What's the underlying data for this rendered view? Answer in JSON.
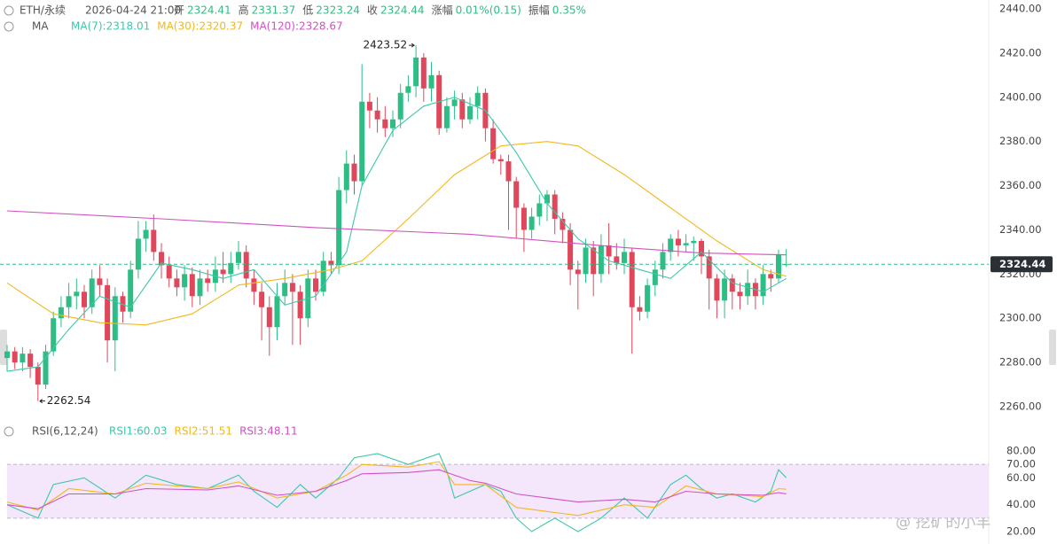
{
  "chart_data": {
    "type": "candlestick",
    "symbol": "ETH/永续",
    "time": "2026-04-24 21:00",
    "stats": [
      {
        "label": "开",
        "value": 2324.41
      },
      {
        "label": "高",
        "value": 2331.37
      },
      {
        "label": "低",
        "value": 2323.24
      },
      {
        "label": "收",
        "value": 2324.44
      },
      {
        "label": "涨幅",
        "value": "0.01%(0.15)"
      },
      {
        "label": "振幅",
        "value": "0.35%"
      }
    ],
    "up_color": "#2ebd85",
    "down_color": "#e0475a",
    "ylim": [
      2260,
      2440
    ],
    "yticks": [
      {
        "value": 2260,
        "label": "2260.00"
      },
      {
        "value": 2280,
        "label": "2280.00"
      },
      {
        "value": 2300,
        "label": "2300.00"
      },
      {
        "value": 2320,
        "label": "2320.00"
      },
      {
        "value": 2340,
        "label": "2340.00"
      },
      {
        "value": 2360,
        "label": "2360.00"
      },
      {
        "value": 2380,
        "label": "2380.00"
      },
      {
        "value": 2400,
        "label": "2400.00"
      },
      {
        "value": 2420,
        "label": "2420.00"
      },
      {
        "value": 2440,
        "label": "2440.00"
      }
    ],
    "candles": [
      [
        2282,
        2288,
        2276,
        2285
      ],
      [
        2285,
        2287,
        2277,
        2280
      ],
      [
        2280,
        2287,
        2276,
        2284
      ],
      [
        2284,
        2286,
        2273,
        2278
      ],
      [
        2278,
        2280,
        2262.54,
        2270
      ],
      [
        2270,
        2288,
        2268,
        2285
      ],
      [
        2285,
        2303,
        2283,
        2300
      ],
      [
        2300,
        2310,
        2296,
        2305
      ],
      [
        2305,
        2316,
        2300,
        2310
      ],
      [
        2310,
        2318,
        2304,
        2312
      ],
      [
        2312,
        2315,
        2300,
        2305
      ],
      [
        2305,
        2322,
        2302,
        2318
      ],
      [
        2318,
        2324,
        2310,
        2315
      ],
      [
        2315,
        2318,
        2280,
        2290
      ],
      [
        2290,
        2314,
        2276,
        2310
      ],
      [
        2310,
        2312,
        2298,
        2303
      ],
      [
        2303,
        2326,
        2300,
        2322
      ],
      [
        2322,
        2344,
        2318,
        2336
      ],
      [
        2336,
        2344,
        2330,
        2340
      ],
      [
        2340,
        2347,
        2326,
        2330
      ],
      [
        2330,
        2334,
        2318,
        2324
      ],
      [
        2324,
        2328,
        2314,
        2318
      ],
      [
        2318,
        2322,
        2310,
        2314
      ],
      [
        2314,
        2324,
        2308,
        2320
      ],
      [
        2320,
        2323,
        2305,
        2310
      ],
      [
        2310,
        2322,
        2306,
        2318
      ],
      [
        2318,
        2322,
        2312,
        2316
      ],
      [
        2316,
        2328,
        2312,
        2322
      ],
      [
        2322,
        2330,
        2316,
        2320
      ],
      [
        2320,
        2330,
        2316,
        2325
      ],
      [
        2325,
        2335,
        2322,
        2330
      ],
      [
        2330,
        2333,
        2314,
        2318
      ],
      [
        2318,
        2322,
        2306,
        2312
      ],
      [
        2312,
        2316,
        2290,
        2305
      ],
      [
        2305,
        2310,
        2283,
        2296
      ],
      [
        2296,
        2316,
        2290,
        2310
      ],
      [
        2310,
        2322,
        2306,
        2316
      ],
      [
        2316,
        2320,
        2288,
        2312
      ],
      [
        2312,
        2315,
        2288,
        2300
      ],
      [
        2300,
        2322,
        2296,
        2318
      ],
      [
        2318,
        2322,
        2308,
        2312
      ],
      [
        2312,
        2330,
        2310,
        2326
      ],
      [
        2326,
        2330,
        2320,
        2324
      ],
      [
        2324,
        2364,
        2320,
        2358
      ],
      [
        2358,
        2376,
        2352,
        2370
      ],
      [
        2370,
        2374,
        2356,
        2362
      ],
      [
        2362,
        2415,
        2360,
        2398
      ],
      [
        2398,
        2402,
        2386,
        2394
      ],
      [
        2394,
        2400,
        2384,
        2390
      ],
      [
        2390,
        2396,
        2382,
        2386
      ],
      [
        2386,
        2394,
        2382,
        2390
      ],
      [
        2390,
        2406,
        2386,
        2402
      ],
      [
        2402,
        2410,
        2398,
        2405
      ],
      [
        2405,
        2423.52,
        2400,
        2418
      ],
      [
        2418,
        2420,
        2398,
        2404
      ],
      [
        2404,
        2416,
        2398,
        2410
      ],
      [
        2410,
        2412,
        2383,
        2386
      ],
      [
        2386,
        2400,
        2384,
        2396
      ],
      [
        2396,
        2403,
        2390,
        2399
      ],
      [
        2399,
        2402,
        2386,
        2390
      ],
      [
        2390,
        2400,
        2388,
        2396
      ],
      [
        2396,
        2405,
        2390,
        2402
      ],
      [
        2402,
        2404,
        2380,
        2386
      ],
      [
        2386,
        2390,
        2370,
        2372
      ],
      [
        2372,
        2374,
        2365,
        2371
      ],
      [
        2371,
        2374,
        2340,
        2362
      ],
      [
        2362,
        2364,
        2336,
        2350
      ],
      [
        2350,
        2352,
        2330,
        2340
      ],
      [
        2340,
        2350,
        2336,
        2346
      ],
      [
        2346,
        2356,
        2342,
        2352
      ],
      [
        2352,
        2358,
        2344,
        2356
      ],
      [
        2356,
        2358,
        2338,
        2345
      ],
      [
        2345,
        2348,
        2334,
        2340
      ],
      [
        2340,
        2343,
        2315,
        2322
      ],
      [
        2322,
        2326,
        2304,
        2320
      ],
      [
        2320,
        2336,
        2316,
        2332
      ],
      [
        2332,
        2335,
        2310,
        2320
      ],
      [
        2320,
        2338,
        2316,
        2333
      ],
      [
        2333,
        2343,
        2320,
        2328
      ],
      [
        2328,
        2334,
        2322,
        2325
      ],
      [
        2325,
        2336,
        2320,
        2330
      ],
      [
        2330,
        2332,
        2284,
        2305
      ],
      [
        2305,
        2310,
        2299,
        2303
      ],
      [
        2303,
        2318,
        2300,
        2315
      ],
      [
        2315,
        2326,
        2310,
        2322
      ],
      [
        2322,
        2334,
        2318,
        2330
      ],
      [
        2330,
        2338,
        2326,
        2336
      ],
      [
        2336,
        2340,
        2328,
        2333
      ],
      [
        2333,
        2338,
        2330,
        2334
      ],
      [
        2334,
        2337,
        2326,
        2335
      ],
      [
        2335,
        2336,
        2320,
        2328
      ],
      [
        2328,
        2331,
        2304,
        2318
      ],
      [
        2318,
        2320,
        2300,
        2308
      ],
      [
        2308,
        2322,
        2300,
        2318
      ],
      [
        2318,
        2320,
        2304,
        2312
      ],
      [
        2312,
        2316,
        2304,
        2310
      ],
      [
        2310,
        2322,
        2306,
        2316
      ],
      [
        2316,
        2318,
        2304,
        2310
      ],
      [
        2310,
        2324,
        2306,
        2320
      ],
      [
        2320,
        2322,
        2312,
        2318
      ],
      [
        2318,
        2331,
        2316,
        2329
      ],
      [
        2324.41,
        2331.37,
        2323.24,
        2324.44
      ]
    ],
    "ma_title": "MA",
    "ma": [
      {
        "name": "MA(7):2318.01",
        "color": "#3cc8aa",
        "x": [
          0,
          4,
          8,
          12,
          16,
          20,
          24,
          28,
          32,
          36,
          40,
          44,
          46,
          50,
          54,
          58,
          62,
          66,
          70,
          74,
          78,
          82,
          86,
          90,
          94,
          98,
          101
        ],
        "values": [
          2276,
          2278,
          2295,
          2310,
          2305,
          2325,
          2322,
          2318,
          2322,
          2306,
          2310,
          2330,
          2360,
          2385,
          2396,
          2400,
          2394,
          2375,
          2352,
          2336,
          2326,
          2322,
          2318,
          2330,
          2316,
          2312,
          2318
        ]
      },
      {
        "name": "MA(30):2320.37",
        "color": "#f2b81d",
        "x": [
          0,
          6,
          12,
          18,
          24,
          30,
          36,
          42,
          46,
          52,
          58,
          64,
          70,
          74,
          80,
          86,
          92,
          98,
          101
        ],
        "values": [
          2316,
          2302,
          2298,
          2297,
          2302,
          2315,
          2318,
          2322,
          2326,
          2345,
          2365,
          2378,
          2380,
          2378,
          2365,
          2350,
          2335,
          2322,
          2319
        ]
      },
      {
        "name": "MA(120):2328.67",
        "color": "#d052c2",
        "x": [
          0,
          20,
          40,
          60,
          80,
          90,
          101
        ],
        "values": [
          2348.6,
          2345,
          2341,
          2338,
          2332,
          2329.5,
          2328.67
        ]
      }
    ],
    "rsi_title": "RSI(6,12,24)",
    "rsi_ylim": [
      20,
      80
    ],
    "rsi_band": [
      30,
      70
    ],
    "rsi_yticks": [
      {
        "value": 20,
        "label": "20.00"
      },
      {
        "value": 40,
        "label": "40.00"
      },
      {
        "value": 60,
        "label": "60.00"
      },
      {
        "value": 70,
        "label": "70.00"
      },
      {
        "value": 80,
        "label": "80.00"
      }
    ],
    "rsi": [
      {
        "name": "RSI1:60.03",
        "color": "#3cc8aa",
        "x": [
          0,
          4,
          6,
          10,
          14,
          18,
          22,
          26,
          30,
          32,
          35,
          38,
          40,
          43,
          45,
          48,
          52,
          56,
          57,
          58,
          62,
          64,
          66,
          68,
          71,
          74,
          77,
          80,
          83,
          86,
          88,
          90,
          92,
          94,
          97,
          99,
          100,
          101
        ],
        "values": [
          40,
          30,
          55,
          60,
          45,
          62,
          55,
          52,
          62,
          50,
          38,
          55,
          45,
          60,
          75,
          78,
          70,
          78,
          65,
          45,
          55,
          50,
          30,
          20,
          30,
          20,
          30,
          45,
          30,
          55,
          62,
          52,
          45,
          48,
          42,
          50,
          66,
          60.03
        ]
      },
      {
        "name": "RSI2:51.51",
        "color": "#f2b81d",
        "x": [
          0,
          4,
          8,
          14,
          18,
          26,
          30,
          35,
          40,
          44,
          46,
          52,
          56,
          58,
          62,
          66,
          70,
          74,
          80,
          84,
          88,
          92,
          98,
          100,
          101
        ],
        "values": [
          42,
          36,
          52,
          48,
          56,
          52,
          57,
          45,
          50,
          62,
          70,
          68,
          72,
          55,
          55,
          38,
          35,
          32,
          40,
          38,
          54,
          48,
          46,
          52,
          51.51
        ]
      },
      {
        "name": "RSI3:48.11",
        "color": "#d052c2",
        "x": [
          0,
          4,
          8,
          14,
          18,
          26,
          30,
          35,
          40,
          44,
          46,
          52,
          56,
          60,
          62,
          66,
          70,
          74,
          80,
          84,
          88,
          92,
          98,
          100,
          101
        ],
        "values": [
          40,
          37,
          48,
          48,
          52,
          51,
          54,
          47,
          50,
          58,
          63,
          64,
          66,
          58,
          56,
          48,
          45,
          42,
          44,
          42,
          50,
          48,
          47,
          49,
          48.11
        ]
      }
    ],
    "watermark": "@ 挖矿的小羊"
  }
}
